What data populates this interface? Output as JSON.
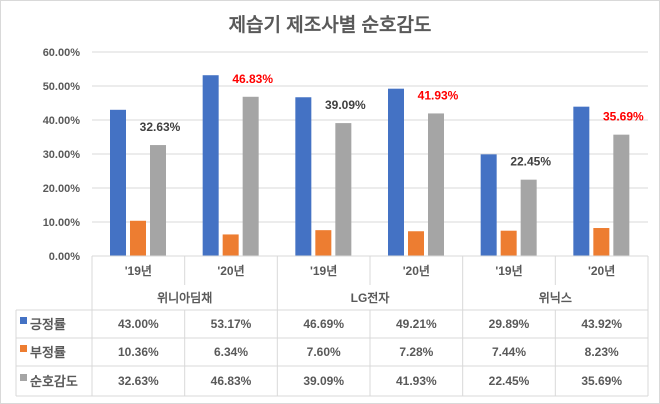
{
  "chart_data": {
    "type": "bar",
    "title": "제습기 제조사별 순호감도",
    "groups": [
      "위니아딤채",
      "LG전자",
      "위닉스"
    ],
    "categories": [
      "'19년",
      "'20년",
      "'19년",
      "'20년",
      "'19년",
      "'20년"
    ],
    "ylim": [
      0,
      60
    ],
    "yticks": [
      "0.00%",
      "10.00%",
      "20.00%",
      "30.00%",
      "40.00%",
      "50.00%",
      "60.00%"
    ],
    "grid": true,
    "legend": "data-table",
    "series": [
      {
        "name": "긍정률",
        "color": "#4472c4",
        "values": [
          43.0,
          53.17,
          46.69,
          49.21,
          29.89,
          43.92
        ],
        "labels": [
          "43.00%",
          "53.17%",
          "46.69%",
          "49.21%",
          "29.89%",
          "43.92%"
        ]
      },
      {
        "name": "부정률",
        "color": "#ed7d31",
        "values": [
          10.36,
          6.34,
          7.6,
          7.28,
          7.44,
          8.23
        ],
        "labels": [
          "10.36%",
          "6.34%",
          "7.60%",
          "7.28%",
          "7.44%",
          "8.23%"
        ]
      },
      {
        "name": "순호감도",
        "color": "#a5a5a5",
        "values": [
          32.63,
          46.83,
          39.09,
          41.93,
          22.45,
          35.69
        ],
        "labels": [
          "32.63%",
          "46.83%",
          "39.09%",
          "41.93%",
          "22.45%",
          "35.69%"
        ]
      }
    ],
    "data_label_colors": [
      "#404040",
      "#ff0000",
      "#404040",
      "#ff0000",
      "#404040",
      "#ff0000"
    ]
  }
}
